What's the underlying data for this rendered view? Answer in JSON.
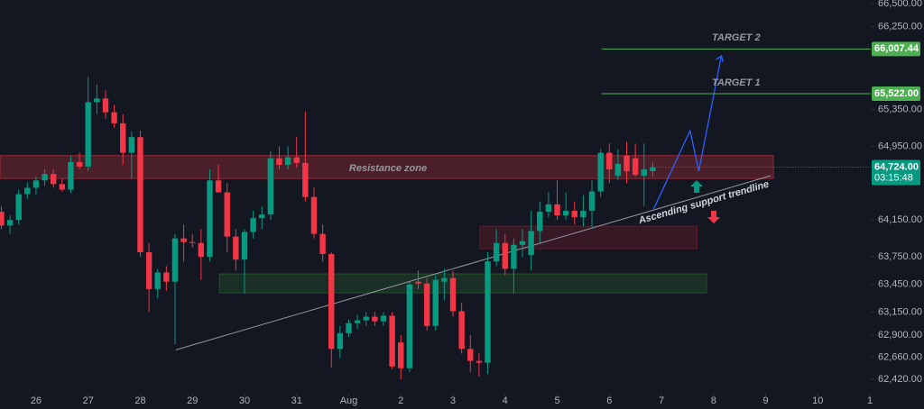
{
  "chart_data": {
    "type": "candlestick",
    "up_color": "#089981",
    "down_color": "#f23645",
    "open": [
      64240,
      64090,
      64150,
      64430,
      64500,
      64580,
      64650,
      64540,
      64480,
      64780,
      64730,
      65430,
      65470,
      65320,
      65200,
      64880,
      65050,
      63800,
      63400,
      63580,
      63480,
      63950,
      63910,
      63900,
      63750,
      64580,
      64450,
      63970,
      63720,
      64020,
      64170,
      64210,
      64820,
      64750,
      64830,
      64770,
      64400,
      64000,
      63780,
      62750,
      62920,
      63030,
      63060,
      63100,
      63050,
      63110,
      62820,
      62540,
      63480,
      63460,
      63000,
      63480,
      63520,
      63160,
      62750,
      62620,
      62600,
      63700,
      63900,
      63620,
      63880,
      63770,
      64030,
      64240,
      64320,
      64200,
      64250,
      64180,
      64250,
      64460,
      64880,
      64630,
      64850,
      64820,
      64630,
      64680
    ],
    "high": [
      64300,
      64200,
      64480,
      64560,
      64620,
      64700,
      64700,
      64600,
      64850,
      64880,
      65700,
      65620,
      65560,
      65400,
      65300,
      65110,
      65120,
      63900,
      63620,
      63650,
      64000,
      64100,
      64000,
      64050,
      64700,
      64750,
      64550,
      64050,
      64050,
      64250,
      64300,
      64900,
      64950,
      64950,
      65050,
      65330,
      64500,
      64100,
      63800,
      63000,
      63070,
      63120,
      63150,
      63150,
      63150,
      63150,
      62900,
      63480,
      63600,
      63520,
      63550,
      63620,
      63600,
      63250,
      62900,
      62700,
      63800,
      64050,
      64000,
      63950,
      64050,
      64250,
      64350,
      64450,
      64580,
      64450,
      64350,
      64420,
      64580,
      64920,
      64980,
      64920,
      65000,
      64980,
      64980,
      64780
    ],
    "low": [
      64050,
      64000,
      64100,
      64380,
      64420,
      64520,
      64500,
      64460,
      64440,
      64700,
      64680,
      65300,
      65250,
      65150,
      64750,
      64600,
      63750,
      63150,
      63300,
      63380,
      62800,
      63700,
      63850,
      63500,
      63700,
      64450,
      63800,
      63600,
      63350,
      63950,
      64050,
      64150,
      64700,
      64700,
      64720,
      64350,
      63950,
      63700,
      62550,
      62650,
      62880,
      62970,
      63000,
      63000,
      63000,
      62530,
      62420,
      62500,
      63400,
      62950,
      62950,
      63280,
      63100,
      62700,
      62500,
      62450,
      62480,
      63650,
      63550,
      63350,
      63750,
      63600,
      63900,
      64180,
      64150,
      64150,
      64100,
      64080,
      64050,
      64400,
      64550,
      64580,
      64550,
      64620,
      64300,
      64620
    ],
    "close": [
      64090,
      64150,
      64430,
      64500,
      64580,
      64650,
      64540,
      64480,
      64780,
      64730,
      65430,
      65470,
      65320,
      65200,
      64880,
      65050,
      63800,
      63400,
      63580,
      63480,
      63950,
      63910,
      63900,
      63750,
      64580,
      64450,
      63970,
      63720,
      64020,
      64170,
      64210,
      64820,
      64750,
      64830,
      64770,
      64400,
      64000,
      63780,
      62750,
      62920,
      63030,
      63060,
      63100,
      63050,
      63110,
      62560,
      62540,
      63450,
      63460,
      63000,
      63500,
      63520,
      63160,
      62750,
      62620,
      62600,
      63700,
      63900,
      63620,
      63880,
      63920,
      64030,
      64240,
      64320,
      64200,
      64250,
      64180,
      64250,
      64460,
      64880,
      64700,
      64760,
      64680,
      64640,
      64700,
      64724
    ],
    "ylim": [
      62264,
      66539
    ],
    "yticks": [
      {
        "value": 66500,
        "label": "66,500.00"
      },
      {
        "value": 66250,
        "label": "66,250.00"
      },
      {
        "value": 65350,
        "label": "65,350.00"
      },
      {
        "value": 64950,
        "label": "64,950.00"
      },
      {
        "value": 64150,
        "label": "64,150.00"
      },
      {
        "value": 63750,
        "label": "63,750.00"
      },
      {
        "value": 63450,
        "label": "63,450.00"
      },
      {
        "value": 63150,
        "label": "63,150.00"
      },
      {
        "value": 62900,
        "label": "62,900.00"
      },
      {
        "value": 62660,
        "label": "62,660.00"
      },
      {
        "value": 62420,
        "label": "62,420.00"
      }
    ],
    "xlim": [
      -0.15,
      100.1
    ],
    "xticks": [
      {
        "value": 4,
        "label": "26"
      },
      {
        "value": 10,
        "label": "27"
      },
      {
        "value": 16,
        "label": "28"
      },
      {
        "value": 22,
        "label": "29"
      },
      {
        "value": 28,
        "label": "30"
      },
      {
        "value": 34,
        "label": "31"
      },
      {
        "value": 40,
        "label": "Aug"
      },
      {
        "value": 46,
        "label": "2"
      },
      {
        "value": 52,
        "label": "3"
      },
      {
        "value": 58,
        "label": "4"
      },
      {
        "value": 64,
        "label": "5"
      },
      {
        "value": 70,
        "label": "6"
      },
      {
        "value": 76,
        "label": "7"
      },
      {
        "value": 82,
        "label": "8"
      },
      {
        "value": 88,
        "label": "9"
      },
      {
        "value": 94,
        "label": "10"
      },
      {
        "value": 100,
        "label": "1"
      }
    ],
    "grid": false,
    "targets": [
      {
        "name": "TARGET 2",
        "value": 66007.44,
        "label": "66,007.44",
        "color": "#4caf50",
        "x_start": 69.1
      },
      {
        "name": "TARGET 1",
        "value": 65522,
        "label": "65,522.00",
        "color": "#4caf50",
        "x_start": 69.1
      }
    ],
    "current_price": {
      "value": 64724,
      "label": "64,724.00",
      "countdown": "03:15:48",
      "color": "#089981"
    },
    "zones": [
      {
        "name": "Resistance zone",
        "x": [
          -0.15,
          88.9
        ],
        "y": [
          64600,
          64850
        ],
        "color": "#f23645"
      },
      {
        "x": [
          55.1,
          80.1
        ],
        "y": [
          63838,
          64083
        ],
        "color": "#a31b2e"
      },
      {
        "x": [
          25.1,
          81.2
        ],
        "y": [
          63359,
          63565
        ],
        "color": "#2e7d32"
      }
    ],
    "trendline": {
      "name": "Ascending support trendline",
      "x": [
        20.1,
        88.6
      ],
      "y": [
        62740,
        64631
      ],
      "color": "#9598a1"
    },
    "projection": {
      "x": [
        75.1,
        79.3,
        80.3,
        82.9
      ],
      "y": [
        64269,
        65120,
        64680,
        65932
      ],
      "color": "#2962ff"
    }
  }
}
